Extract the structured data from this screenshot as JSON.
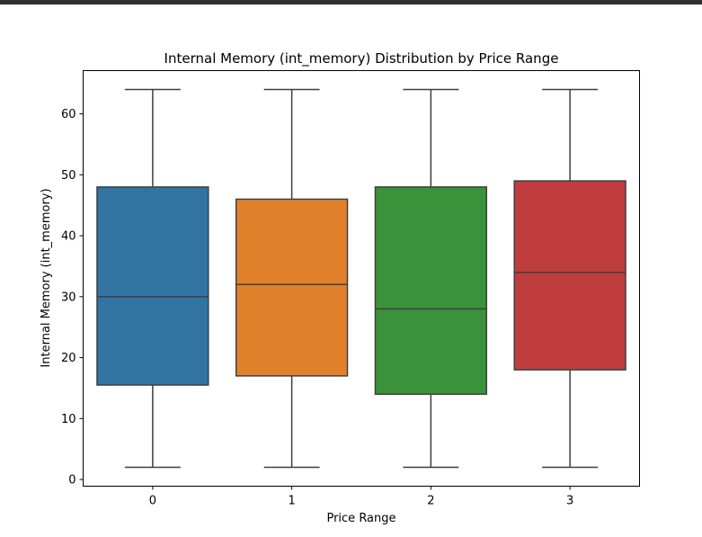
{
  "chart_data": {
    "type": "boxplot",
    "title": "Internal Memory (int_memory) Distribution by Price Range",
    "xlabel": "Price Range",
    "ylabel": "Internal Memory (int_memory)",
    "ylim": [
      -1.1,
      67.1
    ],
    "yticks": [
      0,
      10,
      20,
      30,
      40,
      50,
      60
    ],
    "categories": [
      "0",
      "1",
      "2",
      "3"
    ],
    "grid": false,
    "boxes": [
      {
        "category": "0",
        "whisker_low": 2,
        "q1": 15.5,
        "median": 30,
        "q3": 48,
        "whisker_high": 64,
        "color": "#3274a1"
      },
      {
        "category": "1",
        "whisker_low": 2,
        "q1": 17,
        "median": 32,
        "q3": 46,
        "whisker_high": 64,
        "color": "#e1812c"
      },
      {
        "category": "2",
        "whisker_low": 2,
        "q1": 14,
        "median": 28,
        "q3": 48,
        "whisker_high": 64,
        "color": "#3a923a"
      },
      {
        "category": "3",
        "whisker_low": 2,
        "q1": 18,
        "median": 34,
        "q3": 49,
        "whisker_high": 64,
        "color": "#c03d3e"
      }
    ]
  }
}
